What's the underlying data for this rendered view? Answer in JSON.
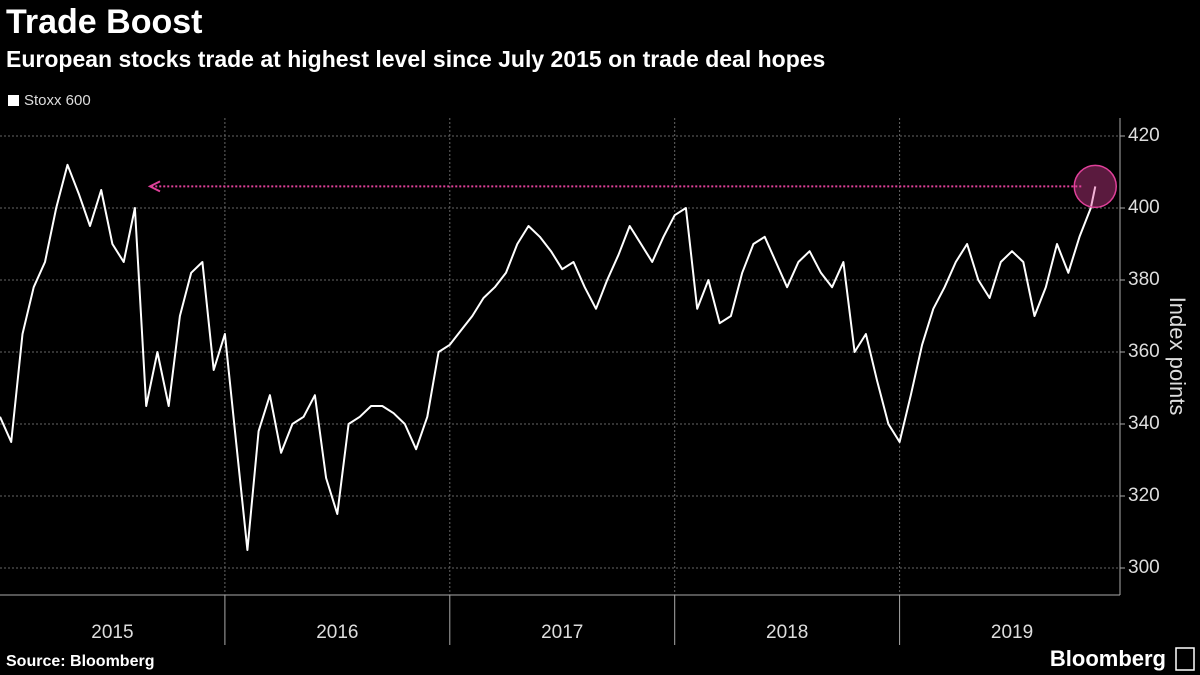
{
  "chart_data": {
    "type": "line",
    "title": "Trade Boost",
    "subtitle": "European stocks trade at highest level since July 2015 on trade deal hopes",
    "y_axis_label": "Index points",
    "source": "Source: Bloomberg",
    "brand": "Bloomberg",
    "xlim": [
      2015,
      2019.98
    ],
    "ylim": [
      292.5,
      425
    ],
    "yticks": [
      300,
      320,
      340,
      360,
      380,
      400,
      420
    ],
    "xticks": [
      {
        "value": 2015.5,
        "label": "2015"
      },
      {
        "value": 2016.5,
        "label": "2016"
      },
      {
        "value": 2017.5,
        "label": "2017"
      },
      {
        "value": 2018.5,
        "label": "2018"
      },
      {
        "value": 2019.5,
        "label": "2019"
      }
    ],
    "x_dividers": [
      2016,
      2017,
      2018,
      2019
    ],
    "grid": true,
    "legend": "top-left",
    "series": [
      {
        "name": "Stoxx 600",
        "color": "#ffffff",
        "x": [
          2015.0,
          2015.05,
          2015.1,
          2015.15,
          2015.2,
          2015.25,
          2015.3,
          2015.35,
          2015.4,
          2015.45,
          2015.5,
          2015.55,
          2015.6,
          2015.65,
          2015.7,
          2015.75,
          2015.8,
          2015.85,
          2015.9,
          2015.95,
          2016.0,
          2016.05,
          2016.1,
          2016.15,
          2016.2,
          2016.25,
          2016.3,
          2016.35,
          2016.4,
          2016.45,
          2016.5,
          2016.55,
          2016.6,
          2016.65,
          2016.7,
          2016.75,
          2016.8,
          2016.85,
          2016.9,
          2016.95,
          2017.0,
          2017.05,
          2017.1,
          2017.15,
          2017.2,
          2017.25,
          2017.3,
          2017.35,
          2017.4,
          2017.45,
          2017.5,
          2017.55,
          2017.6,
          2017.65,
          2017.7,
          2017.75,
          2017.8,
          2017.85,
          2017.9,
          2017.95,
          2018.0,
          2018.05,
          2018.1,
          2018.15,
          2018.2,
          2018.25,
          2018.3,
          2018.35,
          2018.4,
          2018.45,
          2018.5,
          2018.55,
          2018.6,
          2018.65,
          2018.7,
          2018.75,
          2018.8,
          2018.85,
          2018.9,
          2018.95,
          2019.0,
          2019.05,
          2019.1,
          2019.15,
          2019.2,
          2019.25,
          2019.3,
          2019.35,
          2019.4,
          2019.45,
          2019.5,
          2019.55,
          2019.6,
          2019.65,
          2019.7,
          2019.75,
          2019.8,
          2019.85,
          2019.87
        ],
        "values": [
          342,
          335,
          365,
          378,
          385,
          400,
          412,
          404,
          395,
          405,
          390,
          385,
          400,
          345,
          360,
          345,
          370,
          382,
          385,
          355,
          365,
          335,
          305,
          338,
          348,
          332,
          340,
          342,
          348,
          325,
          315,
          340,
          342,
          345,
          345,
          343,
          340,
          333,
          342,
          360,
          362,
          366,
          370,
          375,
          378,
          382,
          390,
          395,
          392,
          388,
          383,
          385,
          378,
          372,
          380,
          387,
          395,
          390,
          385,
          392,
          398,
          400,
          372,
          380,
          368,
          370,
          382,
          390,
          392,
          385,
          378,
          385,
          388,
          382,
          378,
          385,
          360,
          365,
          352,
          340,
          335,
          348,
          362,
          372,
          378,
          385,
          390,
          380,
          375,
          385,
          388,
          385,
          370,
          378,
          390,
          382,
          392,
          400,
          406
        ]
      }
    ]
  }
}
